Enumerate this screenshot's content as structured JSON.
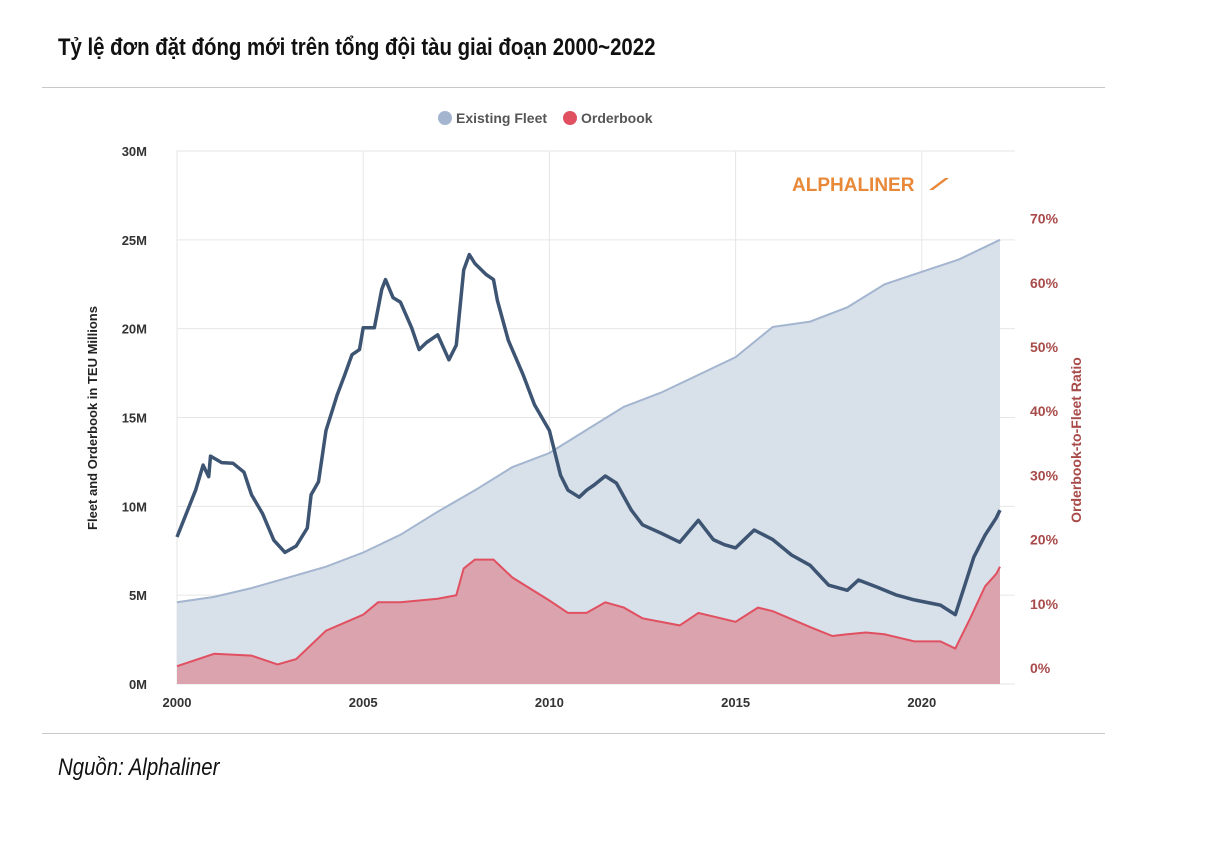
{
  "title": "Tỷ lệ đơn đặt đóng mới trên tổng đội tàu giai đoạn 2000~2022",
  "source": "Nguồn: Alphaliner",
  "logo": "ALPHALINER",
  "chart_data": {
    "type": "area",
    "legend": [
      "Existing Fleet",
      "Orderbook"
    ],
    "legend_placement": "top-center",
    "ylabel": "Fleet and Orderbook in TEU Millions",
    "y2label": "Orderbook-to-Fleet Ratio",
    "xlim": [
      2000,
      2022.1
    ],
    "ylim": [
      0,
      30
    ],
    "y2lim": [
      0,
      82.5
    ],
    "x_ticks": [
      "2000",
      "2005",
      "2010",
      "2015",
      "2020"
    ],
    "y_ticks": [
      "0M",
      "5M",
      "10M",
      "15M",
      "20M",
      "25M",
      "30M"
    ],
    "y2_ticks": [
      "0%",
      "10%",
      "20%",
      "30%",
      "40%",
      "50%",
      "60%",
      "70%"
    ],
    "colors": {
      "fleet": "#a3b5cf",
      "fleet_fill": "#d8e0ea",
      "orderbook": "#e05060",
      "orderbook_fill": "#dba3ad",
      "ratio": "#3d5573",
      "y2": "#a84a4a",
      "logo": "#e8893a"
    },
    "series": [
      {
        "name": "Existing Fleet",
        "unit": "M TEU",
        "points": [
          [
            2000,
            4.6
          ],
          [
            2001,
            4.9
          ],
          [
            2002,
            5.4
          ],
          [
            2003,
            6.0
          ],
          [
            2004,
            6.6
          ],
          [
            2005,
            7.4
          ],
          [
            2006,
            8.4
          ],
          [
            2007,
            9.7
          ],
          [
            2008,
            10.9
          ],
          [
            2009,
            12.2
          ],
          [
            2010,
            13.0
          ],
          [
            2011,
            14.3
          ],
          [
            2012,
            15.6
          ],
          [
            2013,
            16.4
          ],
          [
            2014,
            17.4
          ],
          [
            2015,
            18.4
          ],
          [
            2016,
            20.1
          ],
          [
            2017,
            20.4
          ],
          [
            2018,
            21.2
          ],
          [
            2019,
            22.5
          ],
          [
            2020,
            23.2
          ],
          [
            2021,
            23.9
          ],
          [
            2022.1,
            25.0
          ]
        ]
      },
      {
        "name": "Orderbook",
        "unit": "M TEU",
        "points": [
          [
            2000,
            1.0
          ],
          [
            2001,
            1.7
          ],
          [
            2002,
            1.6
          ],
          [
            2002.7,
            1.1
          ],
          [
            2003.2,
            1.4
          ],
          [
            2004,
            3.0
          ],
          [
            2005,
            3.9
          ],
          [
            2005.4,
            4.6
          ],
          [
            2006,
            4.6
          ],
          [
            2007,
            4.8
          ],
          [
            2007.5,
            5.0
          ],
          [
            2007.7,
            6.5
          ],
          [
            2008,
            7.0
          ],
          [
            2008.5,
            7.0
          ],
          [
            2009,
            6.0
          ],
          [
            2010,
            4.7
          ],
          [
            2010.5,
            4.0
          ],
          [
            2011,
            4.0
          ],
          [
            2011.5,
            4.6
          ],
          [
            2012,
            4.3
          ],
          [
            2012.5,
            3.7
          ],
          [
            2013.5,
            3.3
          ],
          [
            2014,
            4.0
          ],
          [
            2015,
            3.5
          ],
          [
            2015.6,
            4.3
          ],
          [
            2016,
            4.1
          ],
          [
            2017,
            3.2
          ],
          [
            2017.6,
            2.7
          ],
          [
            2018,
            2.8
          ],
          [
            2018.5,
            2.9
          ],
          [
            2019,
            2.8
          ],
          [
            2019.8,
            2.4
          ],
          [
            2020.5,
            2.4
          ],
          [
            2020.9,
            2.0
          ],
          [
            2021.3,
            3.7
          ],
          [
            2021.7,
            5.5
          ],
          [
            2022,
            6.2
          ],
          [
            2022.1,
            6.6
          ]
        ]
      },
      {
        "name": "Orderbook-to-Fleet Ratio",
        "unit": "%",
        "axis": "right",
        "points": [
          [
            2000,
            20.4
          ],
          [
            2000.5,
            27.7
          ],
          [
            2000.7,
            31.6
          ],
          [
            2000.85,
            29.8
          ],
          [
            2000.9,
            33
          ],
          [
            2001.2,
            32
          ],
          [
            2001.5,
            31.9
          ],
          [
            2001.8,
            30.5
          ],
          [
            2002,
            27
          ],
          [
            2002.3,
            24
          ],
          [
            2002.6,
            19.9
          ],
          [
            2002.9,
            18
          ],
          [
            2003.2,
            19
          ],
          [
            2003.5,
            21.8
          ],
          [
            2003.6,
            27
          ],
          [
            2003.8,
            29
          ],
          [
            2004,
            37
          ],
          [
            2004.3,
            42.5
          ],
          [
            2004.5,
            45.6
          ],
          [
            2004.7,
            48.8
          ],
          [
            2004.9,
            49.6
          ],
          [
            2005,
            53
          ],
          [
            2005.3,
            53
          ],
          [
            2005.5,
            59
          ],
          [
            2005.6,
            60.5
          ],
          [
            2005.8,
            57.7
          ],
          [
            2006,
            57
          ],
          [
            2006.3,
            53
          ],
          [
            2006.5,
            49.6
          ],
          [
            2006.7,
            50.7
          ],
          [
            2007,
            51.9
          ],
          [
            2007.3,
            48
          ],
          [
            2007.5,
            50.3
          ],
          [
            2007.7,
            62
          ],
          [
            2007.85,
            64.4
          ],
          [
            2008,
            63
          ],
          [
            2008.3,
            61.3
          ],
          [
            2008.5,
            60.5
          ],
          [
            2008.6,
            57.3
          ],
          [
            2008.9,
            51
          ],
          [
            2009.3,
            45.6
          ],
          [
            2009.6,
            41
          ],
          [
            2010,
            37
          ],
          [
            2010.3,
            30
          ],
          [
            2010.5,
            27.7
          ],
          [
            2010.8,
            26.6
          ],
          [
            2011,
            27.7
          ],
          [
            2011.2,
            28.5
          ],
          [
            2011.5,
            29.9
          ],
          [
            2011.8,
            28.8
          ],
          [
            2012.2,
            24.6
          ],
          [
            2012.5,
            22.3
          ],
          [
            2013,
            21
          ],
          [
            2013.5,
            19.6
          ],
          [
            2014,
            23
          ],
          [
            2014.4,
            20
          ],
          [
            2014.7,
            19.2
          ],
          [
            2015,
            18.7
          ],
          [
            2015.5,
            21.5
          ],
          [
            2016,
            20
          ],
          [
            2016.5,
            17.6
          ],
          [
            2017,
            16
          ],
          [
            2017.5,
            12.9
          ],
          [
            2018,
            12.1
          ],
          [
            2018.3,
            13.7
          ],
          [
            2018.8,
            12.6
          ],
          [
            2019.3,
            11.4
          ],
          [
            2019.8,
            10.6
          ],
          [
            2020.5,
            9.8
          ],
          [
            2020.9,
            8.3
          ],
          [
            2021.2,
            13.7
          ],
          [
            2021.4,
            17.3
          ],
          [
            2021.7,
            20.7
          ],
          [
            2022,
            23.4
          ],
          [
            2022.1,
            24.6
          ]
        ]
      }
    ]
  }
}
